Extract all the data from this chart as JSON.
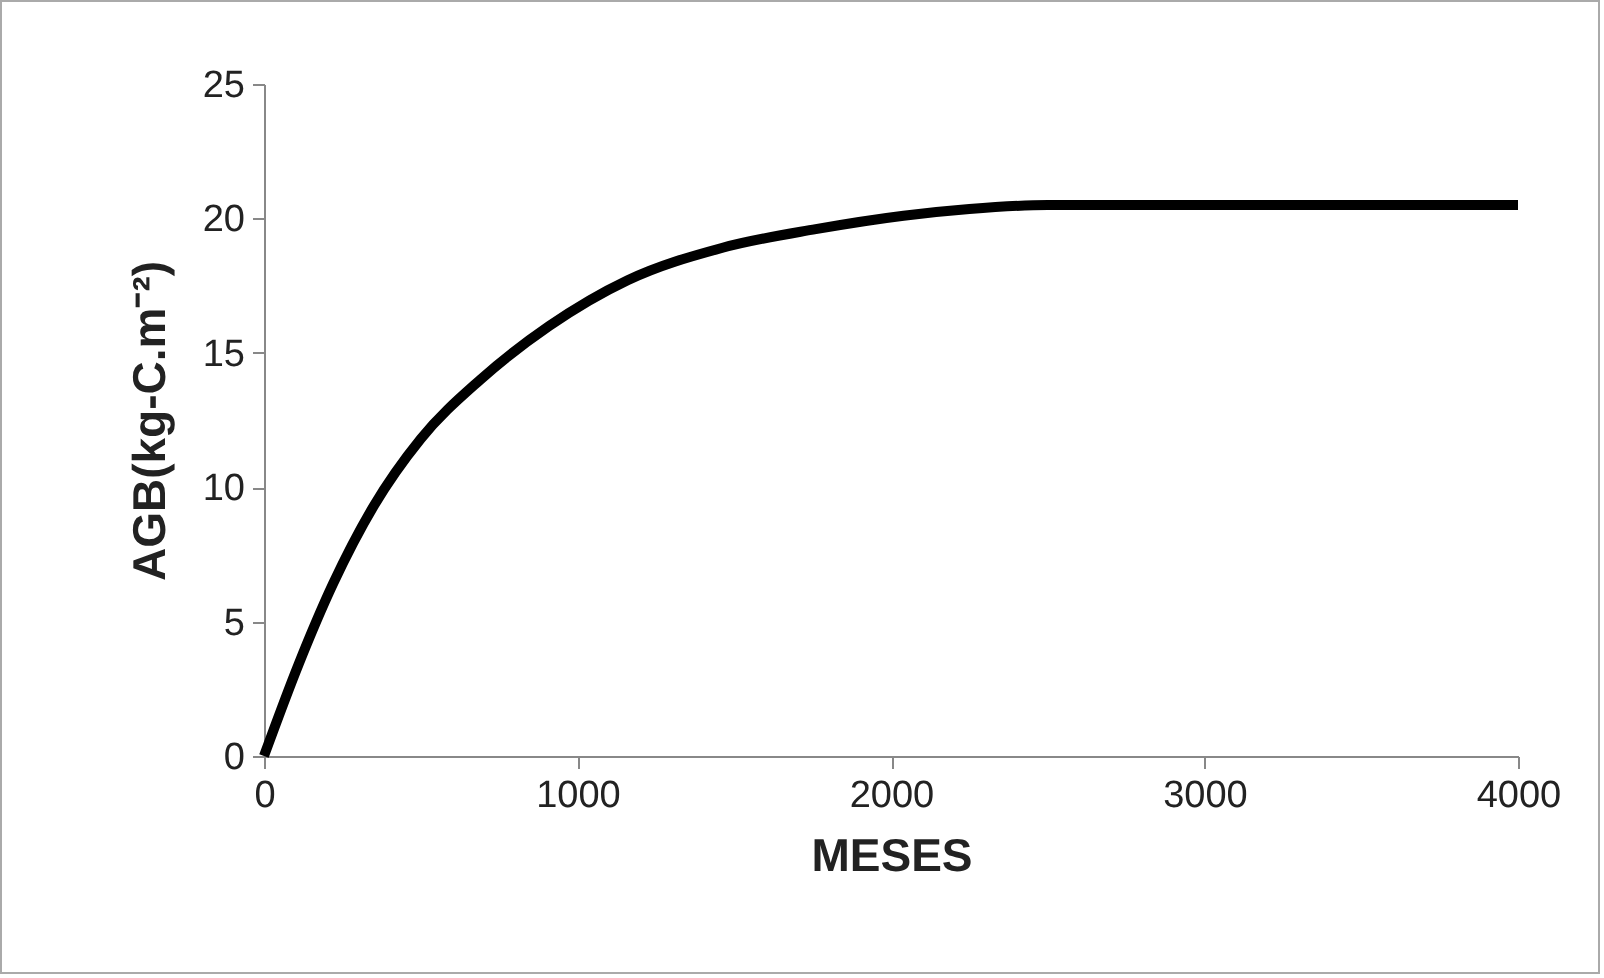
{
  "chart_data": {
    "type": "line",
    "xlabel": "MESES",
    "ylabel": "AGB(kg-C.m⁻²)",
    "x": [
      0,
      110,
      220,
      350,
      500,
      690,
      910,
      1160,
      1460,
      1760,
      2040,
      2250,
      2500,
      4000
    ],
    "series": [
      {
        "color": "#000000",
        "values": [
          0,
          3.4,
          6.4,
          9.3,
          11.8,
          14.0,
          16.0,
          17.7,
          18.9,
          19.6,
          20.1,
          20.35,
          20.5,
          20.5
        ]
      }
    ],
    "xlim": [
      0,
      4000
    ],
    "xticks": [
      0,
      1000,
      2000,
      3000,
      4000
    ],
    "ylim": [
      0,
      25
    ],
    "yticks": [
      0,
      5,
      10,
      15,
      20,
      25
    ],
    "grid": false,
    "marker": "none",
    "line_style": "solid"
  }
}
